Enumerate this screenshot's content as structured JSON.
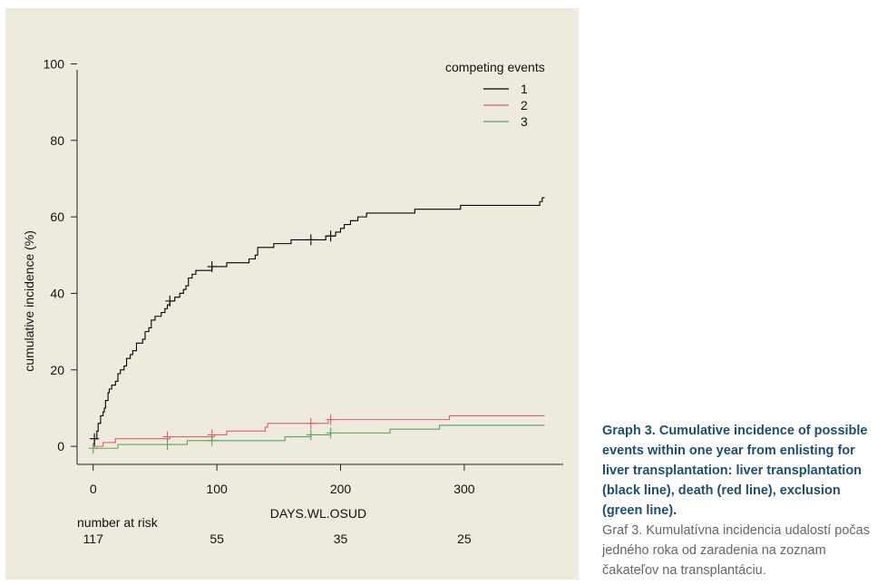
{
  "chart_data": {
    "type": "line",
    "xlabel": "DAYS.WL.OSUD",
    "ylabel": "cumulative incidence (%)",
    "xlim": [
      -13,
      380
    ],
    "ylim": [
      -4,
      102
    ],
    "x_ticks": [
      0,
      100,
      200,
      300
    ],
    "y_ticks": [
      0,
      20,
      40,
      60,
      80,
      100
    ],
    "legend": {
      "title": "competing events",
      "position": "top-right"
    },
    "number_at_risk": {
      "label": "number at risk",
      "times": [
        0,
        100,
        200,
        300
      ],
      "values": [
        117,
        55,
        35,
        25
      ]
    },
    "series": [
      {
        "name": "1",
        "color": "#000000",
        "step": true,
        "points": [
          [
            0,
            0
          ],
          [
            1,
            2
          ],
          [
            3,
            4
          ],
          [
            4,
            6
          ],
          [
            6,
            8
          ],
          [
            8,
            9
          ],
          [
            9,
            10
          ],
          [
            10,
            12
          ],
          [
            12,
            14
          ],
          [
            13,
            15
          ],
          [
            15,
            16
          ],
          [
            18,
            17
          ],
          [
            20,
            19
          ],
          [
            22,
            20
          ],
          [
            25,
            21
          ],
          [
            27,
            23
          ],
          [
            30,
            24
          ],
          [
            32,
            25
          ],
          [
            35,
            27
          ],
          [
            40,
            28
          ],
          [
            42,
            30
          ],
          [
            45,
            31
          ],
          [
            47,
            33
          ],
          [
            50,
            34
          ],
          [
            55,
            35
          ],
          [
            58,
            36
          ],
          [
            60,
            37
          ],
          [
            62,
            38
          ],
          [
            66,
            39
          ],
          [
            70,
            40
          ],
          [
            73,
            41
          ],
          [
            75,
            42
          ],
          [
            77,
            44
          ],
          [
            80,
            45
          ],
          [
            83,
            46
          ],
          [
            96,
            47
          ],
          [
            108,
            48
          ],
          [
            126,
            49
          ],
          [
            131,
            50
          ],
          [
            133,
            52
          ],
          [
            146,
            53
          ],
          [
            160,
            54
          ],
          [
            188,
            55
          ],
          [
            196,
            56
          ],
          [
            200,
            57
          ],
          [
            203,
            58
          ],
          [
            208,
            59
          ],
          [
            214,
            60
          ],
          [
            221,
            61
          ],
          [
            260,
            62
          ],
          [
            297,
            63
          ],
          [
            361,
            64
          ],
          [
            363,
            65
          ],
          [
            365,
            65
          ]
        ],
        "censored": [
          [
            1,
            2
          ],
          [
            62,
            38
          ],
          [
            96,
            47
          ],
          [
            176,
            54
          ],
          [
            192,
            55
          ]
        ]
      },
      {
        "name": "2",
        "color": "#d6636f",
        "step": true,
        "points": [
          [
            0,
            0
          ],
          [
            8,
            1
          ],
          [
            18,
            2
          ],
          [
            62,
            2.5
          ],
          [
            98,
            3
          ],
          [
            108,
            4
          ],
          [
            139,
            5
          ],
          [
            141,
            6
          ],
          [
            190,
            7
          ],
          [
            288,
            8
          ],
          [
            365,
            8
          ]
        ],
        "censored": [
          [
            60,
            2.5
          ],
          [
            96,
            3
          ],
          [
            176,
            6
          ],
          [
            192,
            7
          ]
        ]
      },
      {
        "name": "3",
        "color": "#5aa45a",
        "step": true,
        "points": [
          [
            0,
            -0.5
          ],
          [
            20,
            0.5
          ],
          [
            76,
            1.5
          ],
          [
            155,
            2.5
          ],
          [
            176,
            3
          ],
          [
            192,
            3.5
          ],
          [
            240,
            4.5
          ],
          [
            280,
            5.5
          ],
          [
            365,
            5.5
          ]
        ],
        "censored": [
          [
            0,
            -0.5
          ],
          [
            60,
            0.5
          ],
          [
            96,
            1.5
          ],
          [
            176,
            3
          ],
          [
            192,
            3.5
          ]
        ]
      }
    ]
  },
  "caption": {
    "english": "Graph 3. Cumulative incidence of possible events within one year from enlisting for liver transplantation: liver transplantation (black line), death (red line), exclusion (green line).",
    "slovak": "Graf 3. Kumulatívna incidencia udalostí počas jedného roka od zaradenia na zoznam čakateľov na transplantáciu."
  }
}
